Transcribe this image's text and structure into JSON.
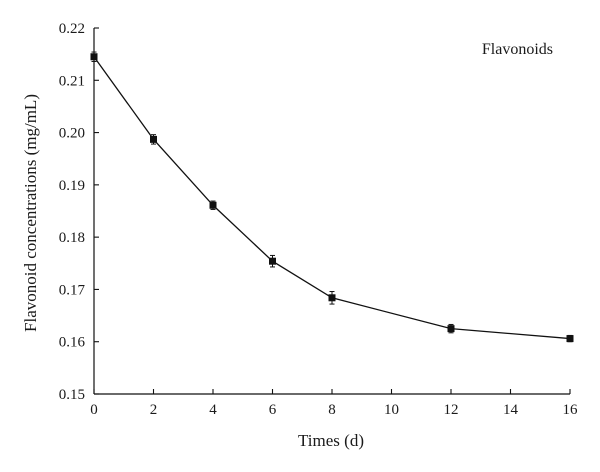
{
  "chart_data": {
    "type": "line",
    "xlabel": "Times (d)",
    "ylabel": "Flavonoid concentrations (mg/mL)",
    "xlim": [
      0,
      16
    ],
    "ylim": [
      0.15,
      0.22
    ],
    "xticks": [
      0,
      2,
      4,
      6,
      8,
      10,
      12,
      14,
      16
    ],
    "yticks": [
      0.15,
      0.16,
      0.17,
      0.18,
      0.19,
      0.2,
      0.21,
      0.22
    ],
    "ytick_labels": [
      "0.15",
      "0.16",
      "0.17",
      "0.18",
      "0.19",
      "0.20",
      "0.21",
      "0.22"
    ],
    "grid": false,
    "legend_position": "top-right",
    "series": [
      {
        "name": "Flavonoids",
        "marker": "square",
        "color": "#111111",
        "x": [
          0,
          2,
          4,
          6,
          8,
          12,
          16
        ],
        "y": [
          0.2145,
          0.1987,
          0.1861,
          0.1754,
          0.1684,
          0.1625,
          0.1606
        ],
        "error": [
          0.0009,
          0.0009,
          0.0008,
          0.0011,
          0.0012,
          0.0008,
          0.0006
        ]
      }
    ]
  }
}
